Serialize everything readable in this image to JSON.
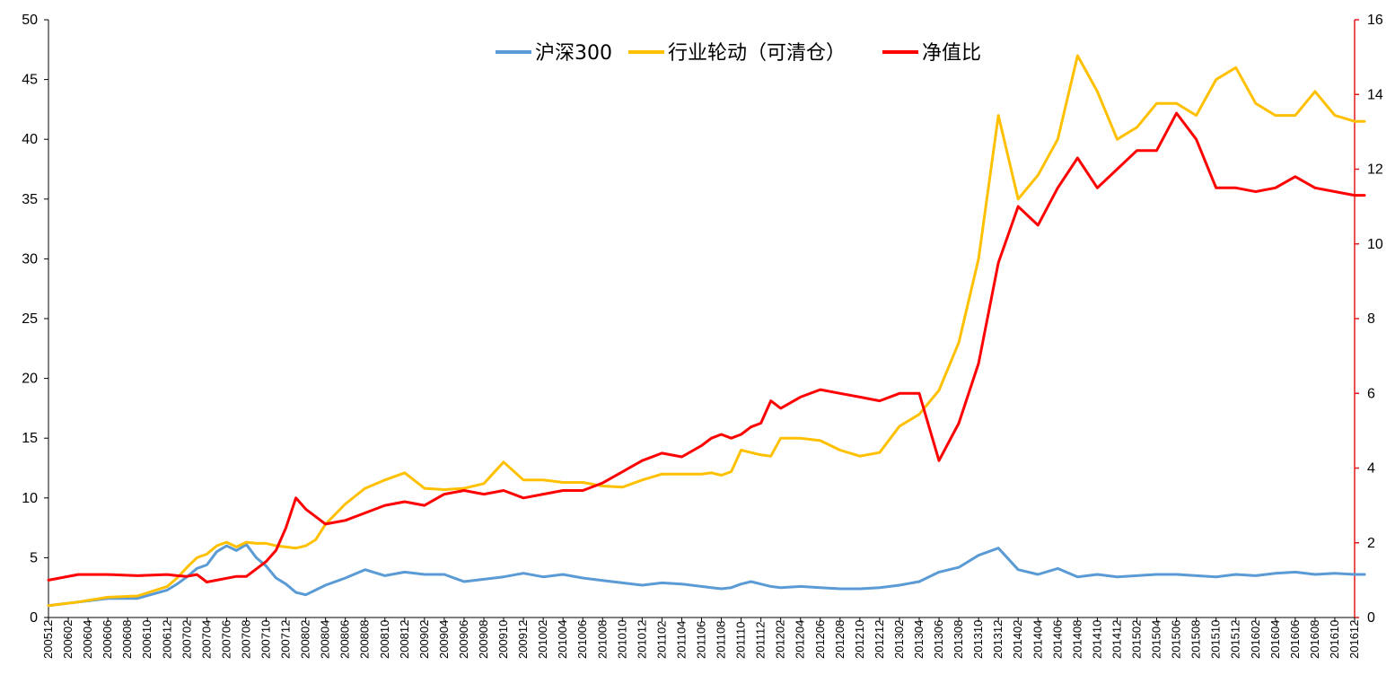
{
  "chart_data": {
    "type": "line",
    "title": "",
    "xlabel": "",
    "ylabel": "",
    "y_left": {
      "min": 0,
      "max": 50,
      "ticks": [
        0,
        5,
        10,
        15,
        20,
        25,
        30,
        35,
        40,
        45,
        50
      ]
    },
    "y_right": {
      "min": 0,
      "max": 16,
      "ticks": [
        0,
        2,
        4,
        6,
        8,
        10,
        12,
        14,
        16
      ],
      "color": "#e31a1c"
    },
    "x_ticks": [
      "200512",
      "200602",
      "200604",
      "200606",
      "200608",
      "200610",
      "200612",
      "200702",
      "200704",
      "200706",
      "200708",
      "200710",
      "200712",
      "200802",
      "200804",
      "200806",
      "200808",
      "200810",
      "200812",
      "200902",
      "200904",
      "200906",
      "200908",
      "200910",
      "200912",
      "201002",
      "201004",
      "201006",
      "201008",
      "201010",
      "201012",
      "201102",
      "201104",
      "201106",
      "201108",
      "201110",
      "201112",
      "201202",
      "201204",
      "201206",
      "201208",
      "201210",
      "201212",
      "201302",
      "201304",
      "201306",
      "201308",
      "201310",
      "201312",
      "201402",
      "201404",
      "201406",
      "201408",
      "201410",
      "201412",
      "201502",
      "201504",
      "201506",
      "201508",
      "201510",
      "201512",
      "201602",
      "201604",
      "201606",
      "201608",
      "201610",
      "201612"
    ],
    "grid": false,
    "legend_position": "top-center",
    "series": [
      {
        "name": "沪深300",
        "axis": "left",
        "color": "#5b9bd5",
        "x": [
          0,
          3,
          6,
          9,
          12,
          13,
          14,
          15,
          16,
          17,
          18,
          19,
          20,
          21,
          22,
          23,
          24,
          25,
          26,
          27,
          28,
          30,
          32,
          34,
          36,
          38,
          40,
          42,
          44,
          46,
          48,
          50,
          52,
          54,
          56,
          58,
          60,
          62,
          64,
          66,
          67,
          68,
          69,
          70,
          71,
          72,
          73,
          74,
          76,
          78,
          80,
          82,
          84,
          86,
          88,
          90,
          92,
          94,
          96,
          98,
          100,
          102,
          104,
          106,
          108,
          110,
          112,
          114,
          116,
          118,
          120,
          122,
          124,
          126,
          128,
          130,
          132,
          133
        ],
        "values": [
          1.0,
          1.3,
          1.6,
          1.6,
          2.3,
          2.8,
          3.4,
          4.1,
          4.4,
          5.5,
          6.0,
          5.6,
          6.1,
          5.0,
          4.3,
          3.3,
          2.8,
          2.1,
          1.9,
          2.3,
          2.7,
          3.3,
          4.0,
          3.5,
          3.8,
          3.6,
          3.6,
          3.0,
          3.2,
          3.4,
          3.7,
          3.4,
          3.6,
          3.3,
          3.1,
          2.9,
          2.7,
          2.9,
          2.8,
          2.6,
          2.5,
          2.4,
          2.5,
          2.8,
          3.0,
          2.8,
          2.6,
          2.5,
          2.6,
          2.5,
          2.4,
          2.4,
          2.5,
          2.7,
          3.0,
          3.8,
          4.2,
          5.2,
          5.8,
          4.0,
          3.6,
          4.1,
          3.4,
          3.6,
          3.4,
          3.5,
          3.6,
          3.6,
          3.5,
          3.4,
          3.6,
          3.5,
          3.7,
          3.8,
          3.6,
          3.7,
          3.6,
          3.6
        ]
      },
      {
        "name": "行业轮动（可清仓）",
        "axis": "left",
        "color": "#ffc000",
        "x": [
          0,
          3,
          6,
          9,
          12,
          13,
          14,
          15,
          16,
          17,
          18,
          19,
          20,
          21,
          22,
          23,
          24,
          25,
          26,
          27,
          28,
          30,
          32,
          34,
          36,
          38,
          40,
          42,
          44,
          46,
          48,
          50,
          52,
          54,
          56,
          58,
          60,
          62,
          64,
          66,
          67,
          68,
          69,
          70,
          71,
          72,
          73,
          74,
          76,
          78,
          80,
          82,
          84,
          86,
          88,
          90,
          92,
          94,
          96,
          98,
          100,
          102,
          104,
          106,
          108,
          110,
          112,
          114,
          116,
          118,
          120,
          122,
          124,
          126,
          128,
          130,
          132,
          133
        ],
        "values": [
          1.0,
          1.3,
          1.7,
          1.8,
          2.6,
          3.3,
          4.2,
          5.0,
          5.3,
          6.0,
          6.3,
          5.9,
          6.3,
          6.2,
          6.2,
          6.0,
          5.9,
          5.8,
          6.0,
          6.5,
          7.8,
          9.5,
          10.8,
          11.5,
          12.1,
          10.8,
          10.7,
          10.8,
          11.2,
          13.0,
          11.5,
          11.5,
          11.3,
          11.3,
          11.0,
          10.9,
          11.5,
          12.0,
          12.0,
          12.0,
          12.1,
          11.9,
          12.2,
          14.0,
          13.8,
          13.6,
          13.5,
          15.0,
          15.0,
          14.8,
          14.0,
          13.5,
          13.8,
          16.0,
          17.0,
          19.0,
          23.0,
          30.0,
          42.0,
          35.0,
          37.0,
          40.0,
          47.0,
          44.0,
          40.0,
          41.0,
          43.0,
          43.0,
          42.0,
          45.0,
          46.0,
          43.0,
          42.0,
          42.0,
          44.0,
          42.0,
          41.5,
          41.5
        ]
      },
      {
        "name": "净值比",
        "axis": "right",
        "color": "#ff0000",
        "x": [
          0,
          3,
          6,
          9,
          12,
          13,
          14,
          15,
          16,
          17,
          18,
          19,
          20,
          21,
          22,
          23,
          24,
          25,
          26,
          27,
          28,
          30,
          32,
          34,
          36,
          38,
          40,
          42,
          44,
          46,
          48,
          50,
          52,
          54,
          56,
          58,
          60,
          62,
          64,
          66,
          67,
          68,
          69,
          70,
          71,
          72,
          73,
          74,
          76,
          78,
          80,
          82,
          84,
          86,
          88,
          90,
          92,
          94,
          96,
          98,
          100,
          102,
          104,
          106,
          108,
          110,
          112,
          114,
          116,
          118,
          120,
          122,
          124,
          126,
          128,
          130,
          132,
          133
        ],
        "values": [
          1.0,
          1.15,
          1.15,
          1.12,
          1.15,
          1.12,
          1.1,
          1.15,
          0.95,
          1.0,
          1.05,
          1.1,
          1.1,
          1.3,
          1.5,
          1.8,
          2.4,
          3.2,
          2.9,
          2.7,
          2.5,
          2.6,
          2.8,
          3.0,
          3.1,
          3.0,
          3.3,
          3.4,
          3.3,
          3.4,
          3.2,
          3.3,
          3.4,
          3.4,
          3.6,
          3.9,
          4.2,
          4.4,
          4.3,
          4.6,
          4.8,
          4.9,
          4.8,
          4.9,
          5.1,
          5.2,
          5.8,
          5.6,
          5.9,
          6.1,
          6.0,
          5.9,
          5.8,
          6.0,
          6.0,
          4.2,
          5.2,
          6.8,
          9.5,
          11.0,
          10.5,
          11.5,
          12.3,
          11.5,
          12.0,
          12.5,
          12.5,
          13.5,
          12.8,
          11.5,
          11.5,
          11.4,
          11.5,
          11.8,
          11.5,
          11.4,
          11.3,
          11.3
        ]
      }
    ]
  }
}
